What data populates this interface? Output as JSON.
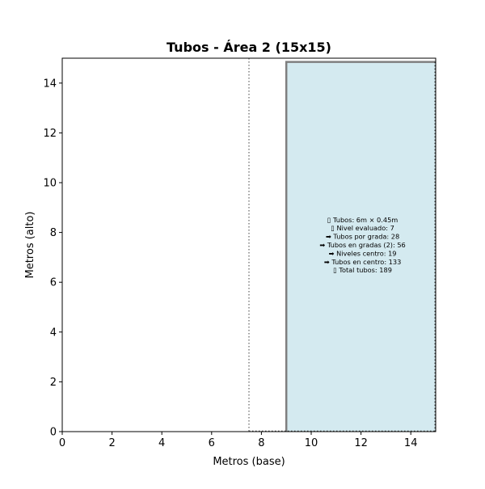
{
  "chart_data": {
    "type": "area",
    "title": "Tubos - Área 2 (15x15)",
    "xlabel": "Metros (base)",
    "ylabel": "Metros (alto)",
    "xlim": [
      0,
      15
    ],
    "ylim": [
      0,
      15
    ],
    "xticks": [
      0,
      2,
      4,
      6,
      8,
      10,
      12,
      14
    ],
    "yticks": [
      0,
      2,
      4,
      6,
      8,
      10,
      12,
      14
    ],
    "grid": false,
    "center_line": {
      "x": 7.5,
      "style": "dotted",
      "color": "#808080"
    },
    "region": {
      "x_start": 9,
      "x_end": 15,
      "y_start": 0,
      "y_end": 14.85,
      "fill": "#d4eaf0",
      "edge": "#7f7f7f"
    },
    "annotation_center": {
      "x": 12,
      "y": 7.5
    },
    "annotation_lines": [
      "▯ Tubos: 6m × 0.45m",
      "▯ Nivel evaluado: 7",
      "➡ Tubos por grada: 28",
      "➡ Tubos en gradas (2): 56",
      "➡ Niveles centro: 19",
      "➡ Tubos en centro: 133",
      "▯ Total tubos: 189"
    ]
  }
}
